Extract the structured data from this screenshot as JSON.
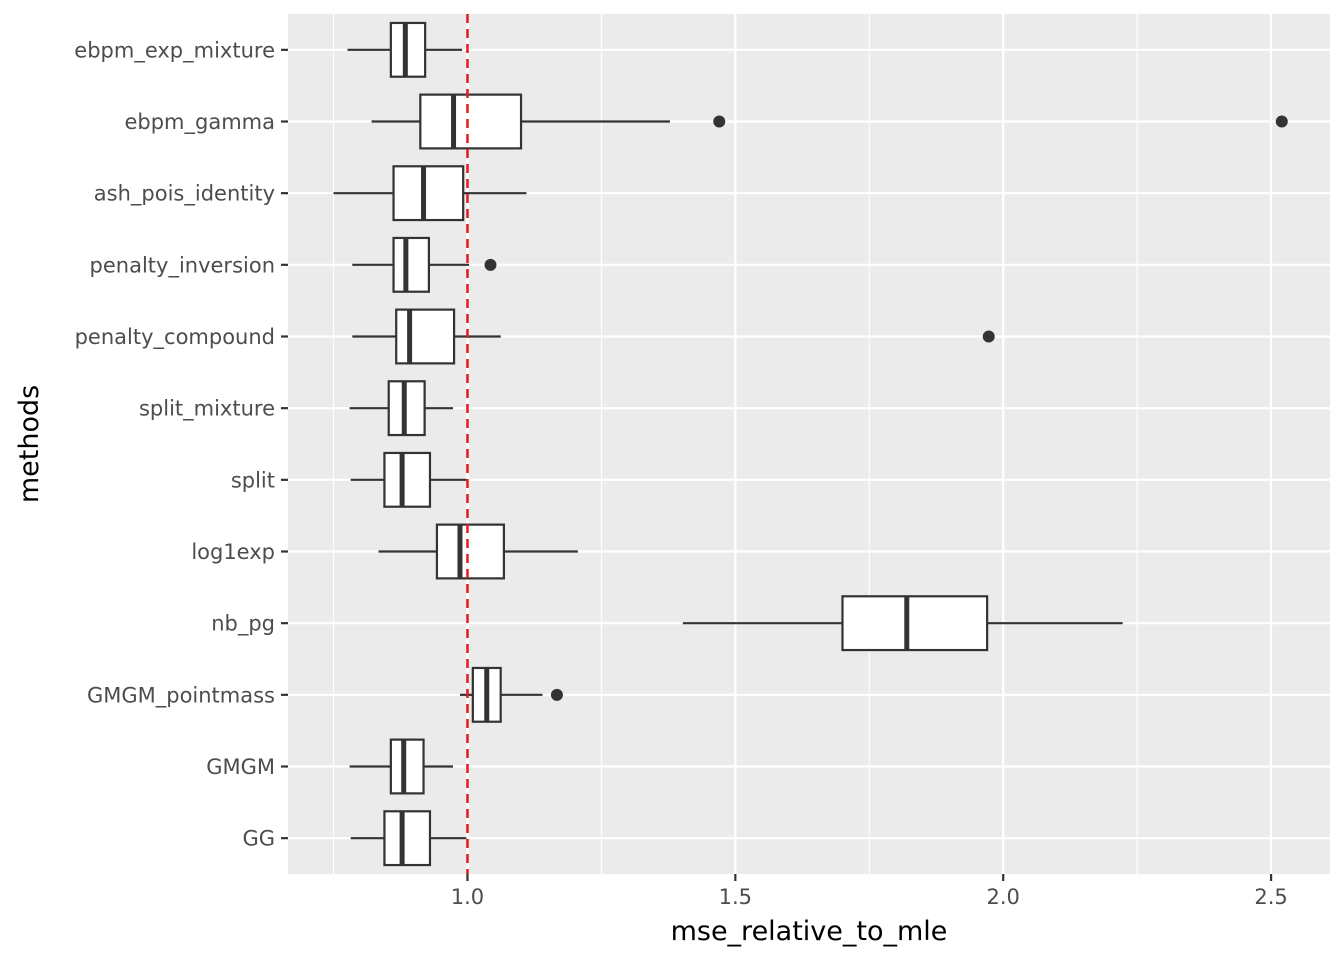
{
  "chart_data": {
    "type": "boxplot",
    "orientation": "horizontal",
    "xlabel": "mse_relative_to_mle",
    "ylabel": "methods",
    "xlim": [
      0.665,
      2.61
    ],
    "xticks": [
      1.0,
      1.5,
      2.0,
      2.5
    ],
    "xtick_labels": [
      "1.0",
      "1.5",
      "2.0",
      "2.5"
    ],
    "minor_xticks": [
      0.75,
      1.25,
      1.75,
      2.25
    ],
    "reference_line": {
      "x": 1.0,
      "color": "#e41a1c",
      "style": "dashed"
    },
    "colors": {
      "panel": "#ebebeb",
      "box_fill": "#ffffff",
      "box_line": "#333333",
      "reference": "#e41a1c"
    },
    "methods": [
      {
        "name": "ebpm_exp_mixture",
        "whisker_low": 0.776,
        "q1": 0.857,
        "median": 0.884,
        "q3": 0.921,
        "whisker_high": 0.99,
        "outliers": []
      },
      {
        "name": "ebpm_gamma",
        "whisker_low": 0.821,
        "q1": 0.912,
        "median": 0.974,
        "q3": 1.1,
        "whisker_high": 1.378,
        "outliers": [
          1.47,
          2.52
        ]
      },
      {
        "name": "ash_pois_identity",
        "whisker_low": 0.75,
        "q1": 0.862,
        "median": 0.918,
        "q3": 0.992,
        "whisker_high": 1.11,
        "outliers": []
      },
      {
        "name": "penalty_inversion",
        "whisker_low": 0.785,
        "q1": 0.862,
        "median": 0.885,
        "q3": 0.928,
        "whisker_high": 1.003,
        "outliers": [
          1.043
        ]
      },
      {
        "name": "penalty_compound",
        "whisker_low": 0.785,
        "q1": 0.867,
        "median": 0.892,
        "q3": 0.975,
        "whisker_high": 1.062,
        "outliers": [
          1.973
        ]
      },
      {
        "name": "split_mixture",
        "whisker_low": 0.78,
        "q1": 0.853,
        "median": 0.882,
        "q3": 0.92,
        "whisker_high": 0.973,
        "outliers": []
      },
      {
        "name": "split",
        "whisker_low": 0.782,
        "q1": 0.845,
        "median": 0.878,
        "q3": 0.93,
        "whisker_high": 0.998,
        "outliers": []
      },
      {
        "name": "log1exp",
        "whisker_low": 0.834,
        "q1": 0.943,
        "median": 0.986,
        "q3": 1.068,
        "whisker_high": 1.206,
        "outliers": []
      },
      {
        "name": "nb_pg",
        "whisker_low": 1.402,
        "q1": 1.7,
        "median": 1.82,
        "q3": 1.97,
        "whisker_high": 2.223,
        "outliers": []
      },
      {
        "name": "GMGM_pointmass",
        "whisker_low": 0.986,
        "q1": 1.01,
        "median": 1.036,
        "q3": 1.062,
        "whisker_high": 1.14,
        "outliers": [
          1.167
        ]
      },
      {
        "name": "GMGM",
        "whisker_low": 0.78,
        "q1": 0.857,
        "median": 0.881,
        "q3": 0.918,
        "whisker_high": 0.973,
        "outliers": []
      },
      {
        "name": "GG",
        "whisker_low": 0.782,
        "q1": 0.845,
        "median": 0.878,
        "q3": 0.93,
        "whisker_high": 0.998,
        "outliers": []
      }
    ]
  }
}
